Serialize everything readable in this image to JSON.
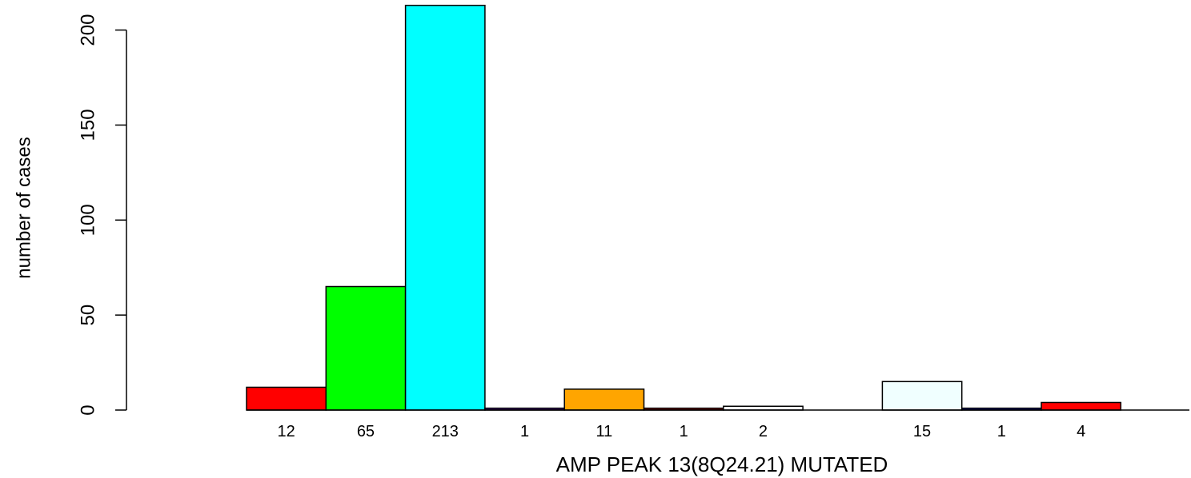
{
  "chart_data": {
    "type": "bar",
    "xlabel": "AMP PEAK 13(8Q24.21) MUTATED",
    "ylabel": "number of cases",
    "ylim": [
      0,
      213
    ],
    "yticks": [
      "0",
      "50",
      "100",
      "150",
      "200"
    ],
    "grid": false,
    "legend": "none",
    "bars": [
      {
        "label": "12",
        "value": 12,
        "color": "#ff0000"
      },
      {
        "label": "65",
        "value": 65,
        "color": "#00ff00"
      },
      {
        "label": "213",
        "value": 213,
        "color": "#00ffff"
      },
      {
        "label": "1",
        "value": 1,
        "color": "#4b0082"
      },
      {
        "label": "11",
        "value": 11,
        "color": "#ffa500"
      },
      {
        "label": "1",
        "value": 1,
        "color": "#8b0000"
      },
      {
        "label": "2",
        "value": 2,
        "color": "#f5f5ff"
      },
      {
        "label": "",
        "value": 0,
        "color": "#ffffff"
      },
      {
        "label": "15",
        "value": 15,
        "color": "#f0ffff"
      },
      {
        "label": "1",
        "value": 1,
        "color": "#000080"
      },
      {
        "label": "4",
        "value": 4,
        "color": "#ff0000"
      }
    ]
  }
}
